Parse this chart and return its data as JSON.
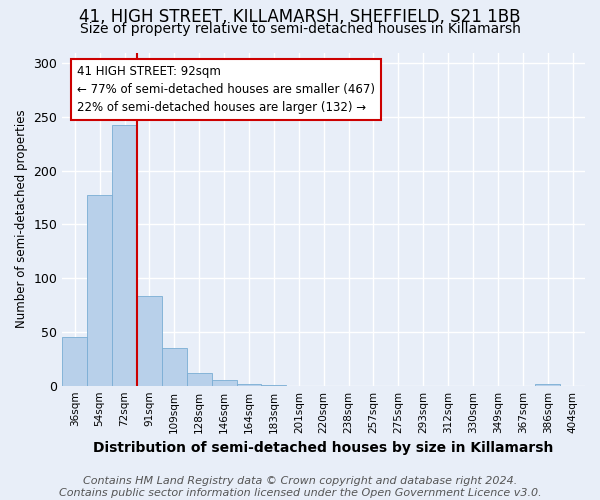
{
  "title_line1": "41, HIGH STREET, KILLAMARSH, SHEFFIELD, S21 1BB",
  "title_line2": "Size of property relative to semi-detached houses in Killamarsh",
  "xlabel": "Distribution of semi-detached houses by size in Killamarsh",
  "ylabel": "Number of semi-detached properties",
  "categories": [
    "36sqm",
    "54sqm",
    "72sqm",
    "91sqm",
    "109sqm",
    "128sqm",
    "146sqm",
    "164sqm",
    "183sqm",
    "201sqm",
    "220sqm",
    "238sqm",
    "257sqm",
    "275sqm",
    "293sqm",
    "312sqm",
    "330sqm",
    "349sqm",
    "367sqm",
    "386sqm",
    "404sqm"
  ],
  "values": [
    45,
    177,
    243,
    83,
    35,
    12,
    5,
    2,
    1,
    0,
    0,
    0,
    0,
    0,
    0,
    0,
    0,
    0,
    0,
    2,
    0
  ],
  "bar_color": "#b8d0ea",
  "bar_edge_color": "#7aadd4",
  "highlight_index": 3,
  "highlight_color": "#cc0000",
  "annotation_text": "41 HIGH STREET: 92sqm\n← 77% of semi-detached houses are smaller (467)\n22% of semi-detached houses are larger (132) →",
  "annotation_box_color": "#ffffff",
  "annotation_box_edge_color": "#cc0000",
  "ylim": [
    0,
    310
  ],
  "yticks": [
    0,
    50,
    100,
    150,
    200,
    250,
    300
  ],
  "footer_text": "Contains HM Land Registry data © Crown copyright and database right 2024.\nContains public sector information licensed under the Open Government Licence v3.0.",
  "background_color": "#e8eef8",
  "grid_color": "#ffffff",
  "title_fontsize": 12,
  "subtitle_fontsize": 10,
  "footer_fontsize": 8,
  "ann_fontsize": 8.5
}
